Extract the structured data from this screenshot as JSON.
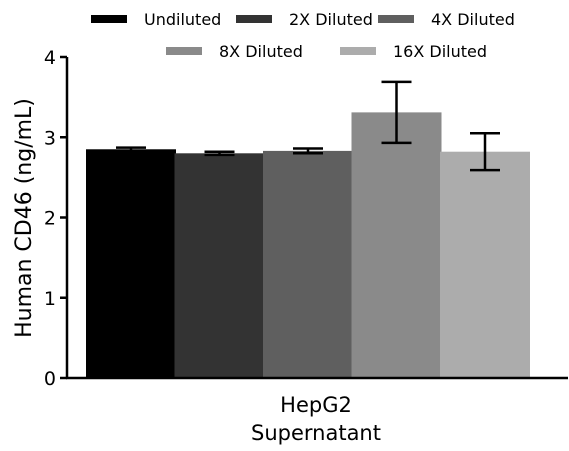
{
  "chart_data": {
    "type": "bar",
    "categories": [
      "HepG2 Supernatant"
    ],
    "category_lines": [
      "HepG2",
      "Supernatant"
    ],
    "xlabel": "",
    "ylabel": "Human CD46 (ng/mL)",
    "ylim": [
      0,
      4
    ],
    "yticks": [
      "0",
      "1",
      "2",
      "3",
      "4"
    ],
    "grid": false,
    "legend_position": "top",
    "series": [
      {
        "name": "Undiluted",
        "value": 2.85,
        "error": 0.02,
        "color": "#000000"
      },
      {
        "name": "2X Diluted",
        "value": 2.8,
        "error": 0.02,
        "color": "#333333"
      },
      {
        "name": "4X Diluted",
        "value": 2.83,
        "error": 0.03,
        "color": "#5f5f5f"
      },
      {
        "name": "8X Diluted",
        "value": 3.31,
        "error": 0.38,
        "color": "#8a8a8a"
      },
      {
        "name": "16X Diluted",
        "value": 2.82,
        "error": 0.23,
        "color": "#acacac"
      }
    ]
  }
}
